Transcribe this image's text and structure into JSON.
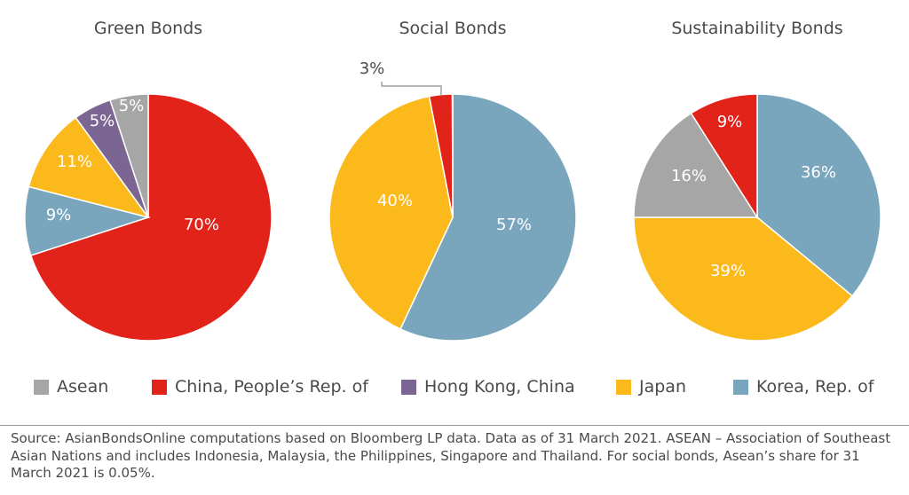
{
  "colors": {
    "asean": "#a6a6a6",
    "china": "#e2231a",
    "hongkong": "#7b6593",
    "japan": "#fbb91b",
    "korea": "#79a6bd"
  },
  "legend": [
    {
      "key": "asean",
      "label": "Asean"
    },
    {
      "key": "china",
      "label": "China, People’s Rep. of"
    },
    {
      "key": "hongkong",
      "label": "Hong Kong, China"
    },
    {
      "key": "japan",
      "label": "Japan"
    },
    {
      "key": "korea",
      "label": "Korea, Rep. of"
    }
  ],
  "chart_data": [
    {
      "type": "pie",
      "title": "Green Bonds",
      "categories": [
        "China, People’s Rep. of",
        "Korea, Rep. of",
        "Japan",
        "Hong Kong, China",
        "Asean"
      ],
      "keys": [
        "china",
        "korea",
        "japan",
        "hongkong",
        "asean"
      ],
      "values": [
        70,
        9,
        11,
        5,
        5
      ],
      "labels": [
        "70%",
        "9%",
        "11%",
        "5%",
        "5%"
      ]
    },
    {
      "type": "pie",
      "title": "Social Bonds",
      "categories": [
        "Korea, Rep. of",
        "Japan",
        "China, People’s Rep. of",
        "Asean"
      ],
      "keys": [
        "korea",
        "japan",
        "china",
        "asean"
      ],
      "values": [
        57,
        40,
        3,
        0.05
      ],
      "labels": [
        "57%",
        "40%",
        "3%",
        ""
      ]
    },
    {
      "type": "pie",
      "title": "Sustainability Bonds",
      "categories": [
        "Korea, Rep. of",
        "Japan",
        "Asean",
        "China, People’s Rep. of"
      ],
      "keys": [
        "korea",
        "japan",
        "asean",
        "china"
      ],
      "values": [
        36,
        39,
        16,
        9
      ],
      "labels": [
        "36%",
        "39%",
        "16%",
        "9%"
      ]
    }
  ],
  "footnote": "Source: AsianBondsOnline computations based on Bloomberg LP data. Data as of 31 March 2021. ASEAN – Association of Southeast Asian Nations and includes Indonesia, Malaysia, the Philippines, Singapore and Thailand. For social bonds, Asean’s share for 31 March 2021 is 0.05%."
}
